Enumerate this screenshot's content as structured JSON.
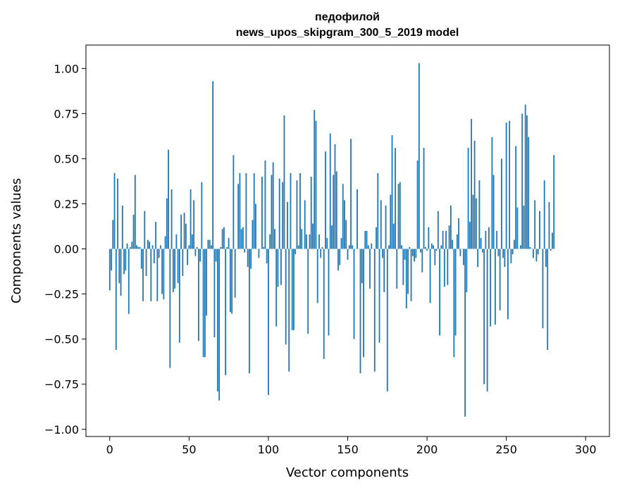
{
  "chart_data": {
    "type": "bar",
    "title": "педофилой",
    "subtitle": "news_upos_skipgram_300_5_2019 model",
    "xlabel": "Vector components",
    "ylabel": "Components values",
    "xlim": [
      -15,
      315
    ],
    "ylim": [
      -1.04,
      1.13
    ],
    "xticks": [
      0,
      50,
      100,
      150,
      200,
      250,
      300
    ],
    "yticks": [
      -1.0,
      -0.75,
      -0.5,
      -0.25,
      0.0,
      0.25,
      0.5,
      0.75,
      1.0
    ],
    "xtick_labels": [
      "0",
      "50",
      "100",
      "150",
      "200",
      "250",
      "300"
    ],
    "ytick_labels": [
      "−1.00",
      "−0.75",
      "−0.50",
      "−0.25",
      "0.00",
      "0.25",
      "0.50",
      "0.75",
      "1.00"
    ],
    "grid": false,
    "bar_color": "#1f77b4",
    "values": [
      -0.23,
      -0.12,
      0.16,
      0.42,
      -0.56,
      0.39,
      -0.19,
      -0.26,
      0.24,
      -0.14,
      -0.12,
      0.03,
      -0.36,
      0.01,
      0.04,
      0.19,
      0.41,
      0.02,
      0.01,
      0.01,
      -0.11,
      -0.29,
      0.21,
      -0.15,
      0.05,
      0.04,
      -0.29,
      0.02,
      -0.08,
      0.15,
      -0.29,
      -0.05,
      0.02,
      -0.25,
      -0.28,
      0.07,
      0.28,
      0.55,
      -0.66,
      0.33,
      -0.24,
      -0.22,
      0.08,
      -0.19,
      -0.52,
      0.19,
      -0.15,
      0.2,
      0.14,
      -0.09,
      0.02,
      0.33,
      0.08,
      0.27,
      -0.04,
      0.01,
      -0.51,
      -0.07,
      0.37,
      -0.6,
      -0.6,
      -0.37,
      0.05,
      0.05,
      0.02,
      0.93,
      -0.49,
      -0.07,
      -0.79,
      -0.84,
      0.01,
      0.11,
      0.12,
      -0.7,
      0.01,
      0.06,
      -0.35,
      -0.36,
      0.52,
      -0.27,
      0.0,
      0.36,
      0.42,
      0.11,
      0.12,
      -0.02,
      0.42,
      -0.1,
      -0.69,
      -0.11,
      0.16,
      0.42,
      0.25,
      0.0,
      -0.05,
      0.0,
      0.4,
      0.01,
      0.49,
      -0.08,
      -0.81,
      0.08,
      0.41,
      0.48,
      0.11,
      -0.43,
      -0.21,
      0.39,
      -0.2,
      0.37,
      0.74,
      -0.53,
      0.26,
      -0.68,
      0.42,
      -0.45,
      -0.45,
      -0.03,
      0.38,
      0.02,
      0.42,
      0.11,
      0.0,
      0.27,
      0.08,
      -0.47,
      0.08,
      0.4,
      0.14,
      0.77,
      0.71,
      -0.3,
      0.08,
      -0.05,
      0.01,
      -0.61,
      0.54,
      0.06,
      -0.48,
      0.64,
      0.13,
      0.41,
      0.58,
      0.43,
      -0.12,
      -0.09,
      0.06,
      0.36,
      0.27,
      0.16,
      -0.06,
      0.02,
      0.61,
      0.02,
      -0.5,
      0.0,
      0.33,
      0.0,
      -0.69,
      -0.19,
      -0.6,
      0.1,
      0.1,
      0.02,
      -0.22,
      0.03,
      0.0,
      -0.68,
      0.12,
      0.42,
      -0.52,
      0.27,
      -0.05,
      -0.24,
      0.24,
      -0.79,
      0.02,
      0.3,
      0.63,
      0.14,
      0.56,
      -0.22,
      0.36,
      0.37,
      0.02,
      -0.2,
      -0.06,
      -0.33,
      -0.25,
      0.01,
      -0.29,
      -0.04,
      -0.07,
      -0.05,
      0.49,
      1.03,
      -0.02,
      -0.13,
      0.56,
      0.01,
      -0.01,
      0.12,
      -0.3,
      0.03,
      0.02,
      -0.09,
      -0.01,
      0.21,
      -0.48,
      0.02,
      0.1,
      -0.21,
      0.1,
      -0.2,
      0.13,
      0.24,
      0.05,
      -0.6,
      -0.48,
      0.08,
      0.17,
      -0.04,
      0.0,
      -0.09,
      -0.93,
      -0.24,
      0.56,
      0.15,
      0.72,
      0.3,
      0.6,
      0.28,
      -0.1,
      0.38,
      0.06,
      -0.02,
      -0.75,
      0.1,
      -0.79,
      0.12,
      -0.43,
      0.62,
      0.41,
      -0.42,
      0.1,
      -0.04,
      -0.34,
      0.5,
      -0.05,
      -0.1,
      0.7,
      -0.39,
      0.71,
      -0.08,
      -0.03,
      0.05,
      0.57,
      0.23,
      0.0,
      0.02,
      0.75,
      0.24,
      0.8,
      0.74,
      0.62,
      0.01,
      0.0,
      -0.05,
      0.27,
      -0.07,
      -0.03,
      0.21,
      0.0,
      -0.44,
      0.38,
      -0.1,
      -0.56,
      0.26,
      -0.01,
      0.09,
      0.52
    ]
  }
}
